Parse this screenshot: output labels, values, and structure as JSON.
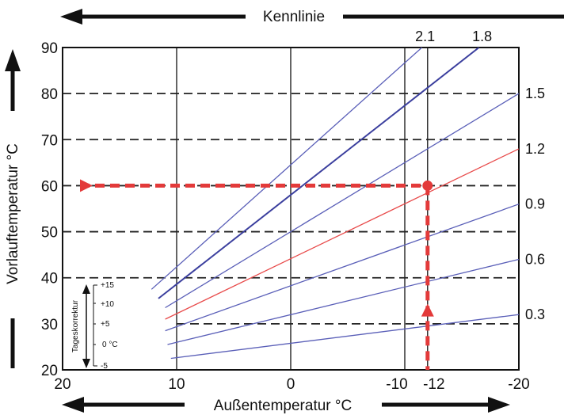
{
  "chart_data": {
    "type": "line",
    "title": "",
    "top_label": "Kennlinie",
    "xlabel": "Außentemperatur  °C",
    "ylabel": "Vorlauftemperatur  °C",
    "xlim": [
      20,
      -20
    ],
    "ylim": [
      20,
      90
    ],
    "x_ticks": [
      20,
      10,
      0,
      -10,
      -12,
      -20
    ],
    "x_tick_labels": [
      "20",
      "10",
      "0",
      "-10",
      "-12",
      "-20"
    ],
    "y_ticks": [
      20,
      30,
      40,
      50,
      60,
      70,
      80,
      90
    ],
    "y_tick_labels": [
      "20",
      "30",
      "40",
      "50",
      "60",
      "70",
      "80",
      "90"
    ],
    "series": [
      {
        "name": "0.3",
        "color": "#5a5fb8",
        "points": [
          [
            10.5,
            22.5
          ],
          [
            -20,
            32
          ]
        ]
      },
      {
        "name": "0.6",
        "color": "#5a5fb8",
        "points": [
          [
            10.8,
            25.5
          ],
          [
            -20,
            44
          ]
        ]
      },
      {
        "name": "0.9",
        "color": "#5a5fb8",
        "points": [
          [
            11,
            28.5
          ],
          [
            -20,
            56
          ]
        ]
      },
      {
        "name": "1.2",
        "color": "#e84a4a",
        "points": [
          [
            11,
            31
          ],
          [
            -20,
            68
          ]
        ]
      },
      {
        "name": "1.5",
        "color": "#5a5fb8",
        "points": [
          [
            11,
            33.5
          ],
          [
            -20,
            80
          ]
        ]
      },
      {
        "name": "1.8",
        "color": "#3b3f9e",
        "points": [
          [
            11.6,
            35.5
          ],
          [
            -16.5,
            90
          ]
        ]
      },
      {
        "name": "2.1",
        "color": "#5a5fb8",
        "points": [
          [
            12.2,
            37.5
          ],
          [
            -11.5,
            90
          ]
        ]
      }
    ],
    "example": {
      "outdoor_temp": -12,
      "flow_temp": 60,
      "curve": "1.2",
      "color": "#e33a3a"
    },
    "dashed_gridlines_y": [
      30,
      40,
      50,
      60,
      70,
      80
    ],
    "inset": {
      "label": "Tageskorrektur",
      "tick_labels": [
        "+15",
        "+10",
        "+5",
        "0  °C",
        "-5"
      ]
    }
  }
}
